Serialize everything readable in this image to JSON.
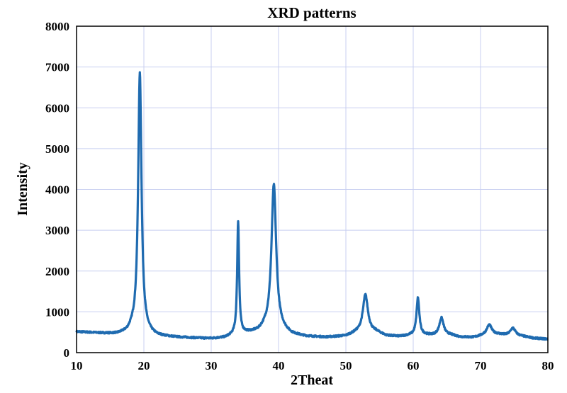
{
  "chart_data": {
    "type": "line",
    "title": "XRD patterns",
    "xlabel": "2Theat",
    "ylabel": "Intensity",
    "xlim": [
      10,
      80
    ],
    "ylim": [
      0,
      8000
    ],
    "xticks": [
      10,
      20,
      30,
      40,
      50,
      60,
      70,
      80
    ],
    "yticks": [
      0,
      1000,
      2000,
      3000,
      4000,
      5000,
      6000,
      7000,
      8000
    ],
    "grid": true,
    "legend": "none",
    "colors": {
      "line": "#1f6bb0",
      "grid": "#c8cff0",
      "frame": "#000000"
    },
    "series": [
      {
        "baseline": [
          [
            10,
            510
          ],
          [
            12,
            490
          ],
          [
            14,
            470
          ],
          [
            16,
            450
          ],
          [
            17.5,
            480
          ],
          [
            18.3,
            560
          ],
          [
            20.5,
            460
          ],
          [
            22,
            400
          ],
          [
            25,
            370
          ],
          [
            28,
            350
          ],
          [
            30,
            340
          ],
          [
            32,
            360
          ],
          [
            33.2,
            420
          ],
          [
            35,
            470
          ],
          [
            37,
            500
          ],
          [
            38,
            580
          ],
          [
            40.5,
            520
          ],
          [
            42,
            430
          ],
          [
            44,
            390
          ],
          [
            47,
            370
          ],
          [
            50,
            400
          ],
          [
            51.5,
            480
          ],
          [
            54.5,
            500
          ],
          [
            56,
            410
          ],
          [
            58,
            390
          ],
          [
            59.5,
            420
          ],
          [
            61.5,
            430
          ],
          [
            63,
            420
          ],
          [
            65.5,
            430
          ],
          [
            67,
            380
          ],
          [
            69,
            370
          ],
          [
            70.5,
            420
          ],
          [
            72.5,
            450
          ],
          [
            73.5,
            430
          ],
          [
            76,
            400
          ],
          [
            78,
            350
          ],
          [
            80,
            330
          ]
        ],
        "peaks": [
          {
            "center": 19.4,
            "height": 6850,
            "width": 0.3
          },
          {
            "center": 34.0,
            "height": 3200,
            "width": 0.17
          },
          {
            "center": 39.3,
            "height": 4120,
            "width": 0.42
          },
          {
            "center": 52.9,
            "height": 1420,
            "width": 0.45
          },
          {
            "center": 60.7,
            "height": 1340,
            "width": 0.25
          },
          {
            "center": 64.2,
            "height": 850,
            "width": 0.38
          },
          {
            "center": 71.3,
            "height": 680,
            "width": 0.45
          },
          {
            "center": 74.8,
            "height": 600,
            "width": 0.45
          }
        ]
      }
    ]
  }
}
